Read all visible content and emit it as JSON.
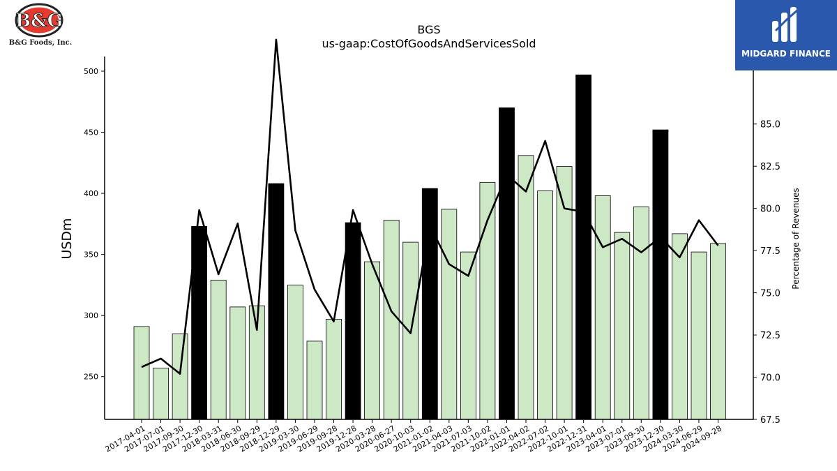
{
  "logos": {
    "company": "B&G Foods, Inc.",
    "company_mark": "B&G",
    "publisher": "MIDGARD FINANCE"
  },
  "chart_data": {
    "type": "bar",
    "title": "BGS",
    "subtitle": "us-gaap:CostOfGoodsAndServicesSold",
    "ylabel": "USDm",
    "y2label": "Percentage of Revenues",
    "ylim": [
      215,
      512
    ],
    "y2lim": [
      67.5,
      89.0
    ],
    "yticks": [
      250,
      300,
      350,
      400,
      450,
      500
    ],
    "y2ticks": [
      "67.5",
      "70.0",
      "72.5",
      "75.0",
      "77.5",
      "80.0",
      "82.5",
      "85.0"
    ],
    "categories": [
      "2017-04-01",
      "2017-07-01",
      "2017-09-30",
      "2017-12-30",
      "2018-03-31",
      "2018-06-30",
      "2018-09-29",
      "2018-12-29",
      "2019-03-30",
      "2019-06-29",
      "2019-09-28",
      "2019-12-28",
      "2020-03-28",
      "2020-06-27",
      "2020-10-03",
      "2021-01-02",
      "2021-04-03",
      "2021-07-03",
      "2021-10-02",
      "2022-01-01",
      "2022-04-02",
      "2022-07-02",
      "2022-10-01",
      "2022-12-31",
      "2023-04-01",
      "2023-07-01",
      "2023-09-30",
      "2023-12-30",
      "2024-03-30",
      "2024-06-29",
      "2024-09-28"
    ],
    "series": [
      {
        "kind": "bar",
        "values": [
          291,
          257,
          285,
          373,
          329,
          307,
          308,
          408,
          325,
          279,
          297,
          376,
          344,
          378,
          360,
          404,
          387,
          352,
          409,
          470,
          431,
          402,
          422,
          497,
          398,
          368,
          389,
          452,
          367,
          352,
          359
        ],
        "fourth_quarter": [
          false,
          false,
          false,
          true,
          false,
          false,
          false,
          true,
          false,
          false,
          false,
          true,
          false,
          false,
          false,
          true,
          false,
          false,
          false,
          true,
          false,
          false,
          false,
          true,
          false,
          false,
          false,
          true,
          false,
          false,
          false
        ],
        "color": "#cde8c5",
        "q4_color": "#000000"
      },
      {
        "kind": "line",
        "axis": "right",
        "values": [
          70.6,
          71.1,
          70.2,
          79.9,
          76.1,
          79.1,
          72.8,
          90.0,
          78.7,
          75.2,
          73.3,
          79.9,
          76.7,
          73.9,
          72.6,
          79.0,
          76.7,
          76.0,
          79.3,
          82.0,
          81.0,
          84.0,
          80.0,
          79.8,
          77.7,
          78.2,
          77.4,
          78.3,
          77.1,
          79.3,
          77.8
        ],
        "color": "#000000"
      }
    ],
    "grid": false,
    "legend": "none"
  }
}
